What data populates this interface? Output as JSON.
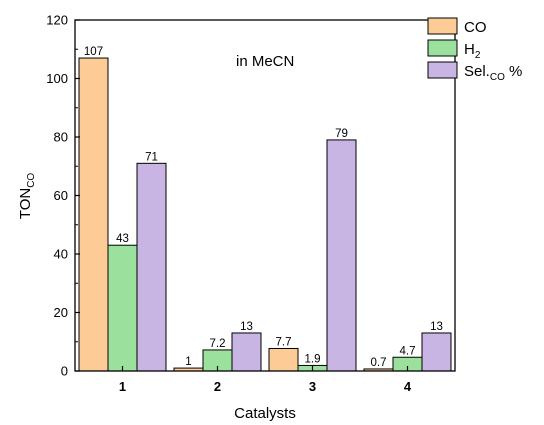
{
  "chart_data": {
    "type": "bar",
    "categories": [
      "1",
      "2",
      "3",
      "4"
    ],
    "series": [
      {
        "name": "CO",
        "values": [
          107,
          1,
          7.7,
          0.7
        ],
        "labels": [
          "107",
          "1",
          "7.7",
          "0.7"
        ],
        "color": "#fdcb96"
      },
      {
        "name": "H2",
        "values": [
          43,
          7.2,
          1.9,
          4.7
        ],
        "labels": [
          "43",
          "7.2",
          "1.9",
          "4.7"
        ],
        "color": "#9ce09d"
      },
      {
        "name": "Sel.CO %",
        "values": [
          71,
          13,
          79,
          13
        ],
        "labels": [
          "71",
          "13",
          "79",
          "13"
        ],
        "color": "#c8b5e4"
      }
    ],
    "legend_labels": [
      {
        "main": "CO",
        "sub": "",
        "tail": ""
      },
      {
        "main": "H",
        "sub": "2",
        "tail": ""
      },
      {
        "main": "Sel.",
        "sub": "CO",
        "tail": " %"
      }
    ],
    "xlabel": "Catalysts",
    "ylabel": {
      "main": "TON",
      "sub": "CO"
    },
    "annotation": "in MeCN",
    "ylim": [
      0,
      120
    ],
    "yticks": [
      0,
      20,
      40,
      60,
      80,
      100,
      120
    ],
    "ytick_labels": [
      "0",
      "20",
      "40",
      "60",
      "80",
      "100",
      "120"
    ],
    "legend_position": "top-right",
    "grid": false
  }
}
